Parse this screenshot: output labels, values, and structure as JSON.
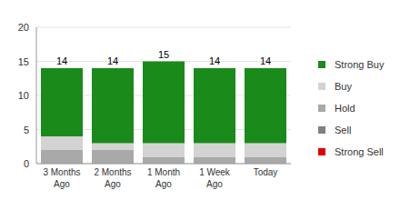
{
  "chart_data": {
    "type": "bar",
    "stacked": true,
    "grid": true,
    "legend": "right",
    "categories": [
      "3 Months Ago",
      "2 Months Ago",
      "1 Month Ago",
      "1 Week Ago",
      "Today"
    ],
    "series": [
      {
        "name": "Strong Buy",
        "color": "#1a8a1a",
        "values": [
          10,
          11,
          12,
          11,
          11
        ]
      },
      {
        "name": "Buy",
        "color": "#d3d3d3",
        "values": [
          2,
          1,
          2,
          2,
          2
        ]
      },
      {
        "name": "Hold",
        "color": "#a9a9a9",
        "values": [
          2,
          2,
          1,
          1,
          1
        ]
      },
      {
        "name": "Sell",
        "color": "#808080",
        "values": [
          0,
          0,
          0,
          0,
          0
        ]
      },
      {
        "name": "Strong Sell",
        "color": "#e00000",
        "values": [
          0,
          0,
          0,
          0,
          0
        ]
      }
    ],
    "totals": [
      14,
      14,
      15,
      14,
      14
    ],
    "ylim": [
      0,
      20
    ],
    "yticks": [
      0,
      5,
      10,
      15,
      20
    ]
  }
}
